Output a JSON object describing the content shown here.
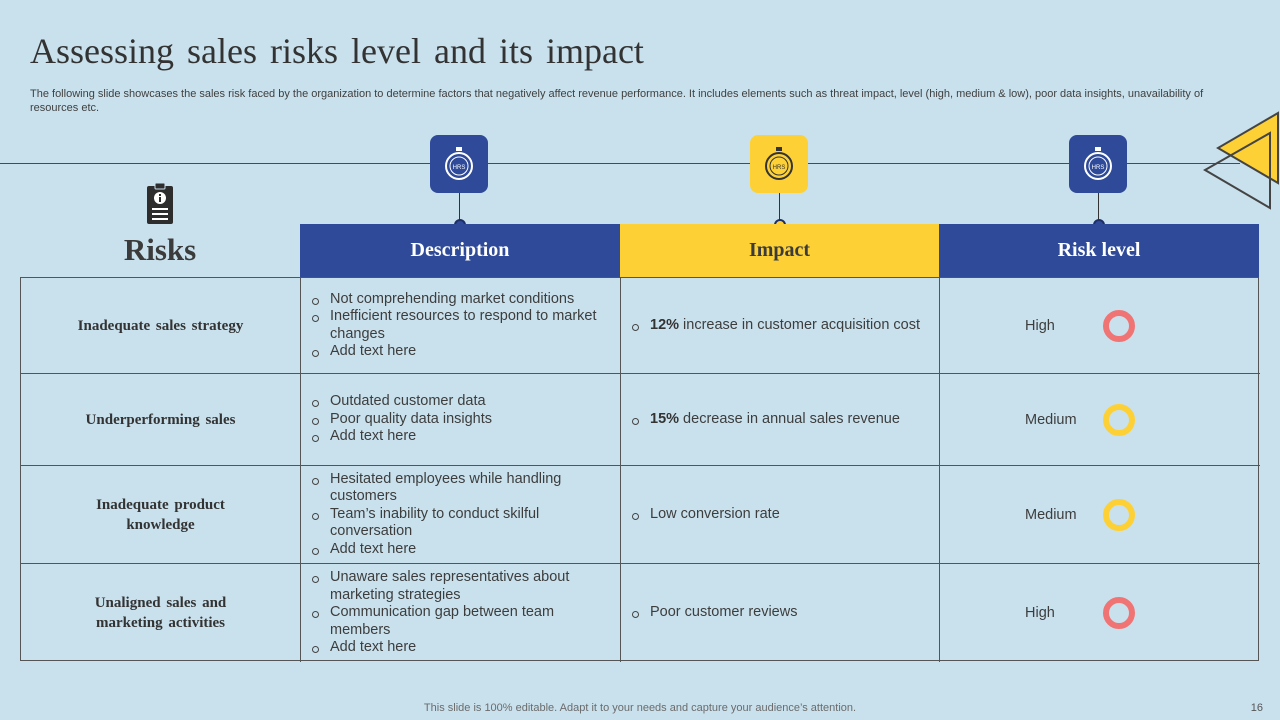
{
  "title": "Assessing sales risks level and its impact",
  "subtitle": "The following slide showcases the sales risk faced by the organization to determine factors that negatively affect revenue performance. It includes elements such as threat impact, level (high, medium & low), poor data insights, unavailability of resources etc.",
  "icons": {
    "clock_label": "HRS"
  },
  "risks_label": "Risks",
  "headers": {
    "description": "Description",
    "impact": "Impact",
    "risk_level": "Risk level"
  },
  "colors": {
    "blue": "#2e4a99",
    "yellow": "#fdd135",
    "high": "#f07474",
    "medium": "#fdd135",
    "background": "#c9e1ed"
  },
  "rows": [
    {
      "risk": "Inadequate sales strategy",
      "description": [
        "Not comprehending market conditions",
        "Inefficient resources to respond to market changes",
        "Add text here"
      ],
      "impact_bold": "12%",
      "impact_text": " increase in customer acquisition cost",
      "level": "High"
    },
    {
      "risk": "Underperforming sales",
      "description": [
        "Outdated customer data",
        "Poor quality data insights",
        "Add text here"
      ],
      "impact_bold": "15%",
      "impact_text": " decrease in annual sales revenue",
      "level": "Medium"
    },
    {
      "risk": "Inadequate product knowledge",
      "description": [
        "Hesitated employees while handling customers",
        "Team’s inability to conduct skilful conversation",
        "Add text here"
      ],
      "impact_bold": "",
      "impact_text": "Low conversion rate",
      "level": "Medium"
    },
    {
      "risk": "Unaligned sales and marketing activities",
      "description": [
        "Unaware sales representatives about marketing strategies",
        "Communication gap between team members",
        "Add text here"
      ],
      "impact_bold": "",
      "impact_text": "Poor customer reviews",
      "level": "High"
    }
  ],
  "footer": "This slide is 100% editable. Adapt it to your needs and capture your audience’s attention.",
  "page_number": "16"
}
